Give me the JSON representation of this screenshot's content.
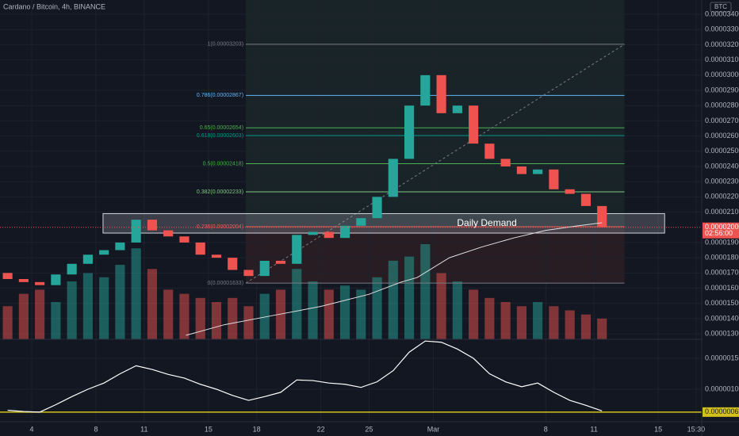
{
  "chart_data": {
    "type": "candlestick",
    "title": "Cardano / Bitcoin, 4h, BINANCE",
    "unit": "BTC",
    "up_color": "#26a69a",
    "down_color": "#ef5350",
    "x": [
      2.5,
      3.5,
      4.5,
      5.5,
      6.5,
      7.5,
      8.5,
      9.5,
      10.5,
      11.5,
      12.5,
      13.5,
      14.5,
      15.5,
      16.5,
      17.5,
      18.5,
      19.5,
      20.5,
      21.5,
      22.5,
      23.5,
      24.5,
      25.5,
      26.5,
      27.5,
      28.5,
      29.5,
      30.5,
      31.5,
      32.5,
      33.5,
      34.5,
      35.5,
      36.5,
      37.5,
      38.5,
      39.5
    ],
    "open": [
      1.7e-05,
      1.66e-05,
      1.64e-05,
      1.62e-05,
      1.69e-05,
      1.76e-05,
      1.82e-05,
      1.85e-05,
      1.9e-05,
      2.05e-05,
      1.98e-05,
      1.94e-05,
      1.9e-05,
      1.82e-05,
      1.8e-05,
      1.72e-05,
      1.68e-05,
      1.78e-05,
      1.76e-05,
      1.95e-05,
      1.97e-05,
      1.93e-05,
      2.01e-05,
      2.06e-05,
      2.2e-05,
      2.45e-05,
      2.8e-05,
      3e-05,
      2.75e-05,
      2.8e-05,
      2.55e-05,
      2.45e-05,
      2.4e-05,
      2.35e-05,
      2.38e-05,
      2.25e-05,
      2.22e-05,
      2.14e-05
    ],
    "close": [
      1.66e-05,
      1.64e-05,
      1.62e-05,
      1.69e-05,
      1.76e-05,
      1.82e-05,
      1.85e-05,
      1.9e-05,
      2.05e-05,
      1.98e-05,
      1.94e-05,
      1.9e-05,
      1.82e-05,
      1.8e-05,
      1.72e-05,
      1.68e-05,
      1.78e-05,
      1.76e-05,
      1.95e-05,
      1.97e-05,
      1.93e-05,
      2.01e-05,
      2.06e-05,
      2.2e-05,
      2.45e-05,
      2.8e-05,
      3e-05,
      2.75e-05,
      2.8e-05,
      2.55e-05,
      2.45e-05,
      2.4e-05,
      2.35e-05,
      2.38e-05,
      2.25e-05,
      2.22e-05,
      2.14e-05,
      2e-05
    ],
    "volume": [
      40,
      55,
      60,
      45,
      70,
      80,
      75,
      90,
      110,
      85,
      60,
      55,
      50,
      45,
      50,
      40,
      55,
      60,
      85,
      70,
      60,
      65,
      60,
      75,
      95,
      100,
      115,
      80,
      70,
      60,
      50,
      45,
      40,
      45,
      40,
      35,
      30,
      25
    ],
    "xlim": [
      2.026,
      45.71
    ],
    "xticks": [
      4,
      8,
      11,
      15,
      18,
      22,
      25,
      {
        "value": 29,
        "label": "Mar"
      },
      {
        "value": 36,
        "label": "8"
      },
      {
        "value": 39,
        "label": "11"
      },
      {
        "value": 43,
        "label": "15"
      },
      {
        "value": 45.36,
        "label": "15:30"
      }
    ],
    "ylim": [
      1.264e-05,
      3.494e-05
    ],
    "yticks": [
      {
        "value": 3.4e-05,
        "label": "0.00003400"
      },
      {
        "value": 3.3e-05,
        "label": "0.00003300"
      },
      {
        "value": 3.2e-05,
        "label": "0.00003200"
      },
      {
        "value": 3.1e-05,
        "label": "0.00003100"
      },
      {
        "value": 3e-05,
        "label": "0.00003000"
      },
      {
        "value": 2.9e-05,
        "label": "0.00002900"
      },
      {
        "value": 2.8e-05,
        "label": "0.00002800"
      },
      {
        "value": 2.7e-05,
        "label": "0.00002700"
      },
      {
        "value": 2.6e-05,
        "label": "0.00002600"
      },
      {
        "value": 2.5e-05,
        "label": "0.00002500"
      },
      {
        "value": 2.4e-05,
        "label": "0.00002400"
      },
      {
        "value": 2.3e-05,
        "label": "0.00002300"
      },
      {
        "value": 2.2e-05,
        "label": "0.00002200"
      },
      {
        "value": 2.1e-05,
        "label": "0.00002100"
      },
      {
        "value": 1.9e-05,
        "label": "0.00001900"
      },
      {
        "value": 1.8e-05,
        "label": "0.00001800"
      },
      {
        "value": 1.7e-05,
        "label": "0.00001700"
      },
      {
        "value": 1.6e-05,
        "label": "0.00001600"
      },
      {
        "value": 1.5e-05,
        "label": "0.00001500"
      },
      {
        "value": 1.4e-05,
        "label": "0.00001400"
      },
      {
        "value": 1.3e-05,
        "label": "0.00001300"
      }
    ],
    "last_price": {
      "value": 2e-05,
      "label": "0.00002000"
    },
    "countdown": "02:56:00",
    "ma": {
      "color": "#e0e0e0",
      "x": [
        13.6,
        16,
        19,
        22,
        25,
        27,
        28,
        30,
        32,
        34,
        36,
        38,
        39.5
      ],
      "values": [
        1.29e-05,
        1.36e-05,
        1.42e-05,
        1.48e-05,
        1.56e-05,
        1.64e-05,
        1.67e-05,
        1.8e-05,
        1.87e-05,
        1.93e-05,
        1.98e-05,
        2.01e-05,
        2.03e-05
      ]
    },
    "fib": {
      "x_start": 17.33,
      "x_end": 40.9,
      "levels": [
        {
          "value": 3.203e-05,
          "label": "1(0.00003203)",
          "color": "#787b86"
        },
        {
          "value": 2.867e-05,
          "label": "0.786(0.00002867)",
          "color": "#64b5f6"
        },
        {
          "value": 2.654e-05,
          "label": "0.65(0.00002654)",
          "color": "#4caf50"
        },
        {
          "value": 2.603e-05,
          "label": "0.618(0.00002603)",
          "color": "#009688"
        },
        {
          "value": 2.418e-05,
          "label": "0.5(0.00002418)",
          "color": "#4caf50"
        },
        {
          "value": 2.233e-05,
          "label": "0.382(0.00002233)",
          "color": "#81c784"
        },
        {
          "value": 2.004e-05,
          "label": "0.236(0.00002004)",
          "color": "#f44336"
        },
        {
          "value": 1.633e-05,
          "label": "0(0.00001633)",
          "color": "#787b86"
        }
      ]
    },
    "zone": {
      "label": "Daily Demand",
      "top": 2.09e-05,
      "bottom": 1.962e-05,
      "x_start": 8.44,
      "x_end": 43.4
    },
    "indicator": {
      "color": "#ffffff",
      "ylim": [
        4.74e-07,
        1.808e-06
      ],
      "yticks": [
        {
          "value": 1.5e-06,
          "label": "0.00000150"
        },
        {
          "value": 1e-06,
          "label": "0.00000100"
        }
      ],
      "level": {
        "value": 6.3e-07,
        "label": "0.00000063",
        "color": "#d4c21a"
      },
      "values": [
        6.6e-07,
        6.4e-07,
        6.3e-07,
        7.5e-07,
        8.8e-07,
        1e-06,
        1.1e-06,
        1.25e-06,
        1.38e-06,
        1.32e-06,
        1.24e-06,
        1.18e-06,
        1.08e-06,
        1e-06,
        9e-07,
        8.2e-07,
        8.8e-07,
        9.5e-07,
        1.15e-06,
        1.14e-06,
        1.1e-06,
        1.08e-06,
        1.03e-06,
        1.12e-06,
        1.3e-06,
        1.6e-06,
        1.78e-06,
        1.76e-06,
        1.65e-06,
        1.5e-06,
        1.25e-06,
        1.12e-06,
        1.04e-06,
        1.1e-06,
        9.5e-07,
        8.2e-07,
        7.4e-07,
        6.5e-07
      ]
    }
  }
}
